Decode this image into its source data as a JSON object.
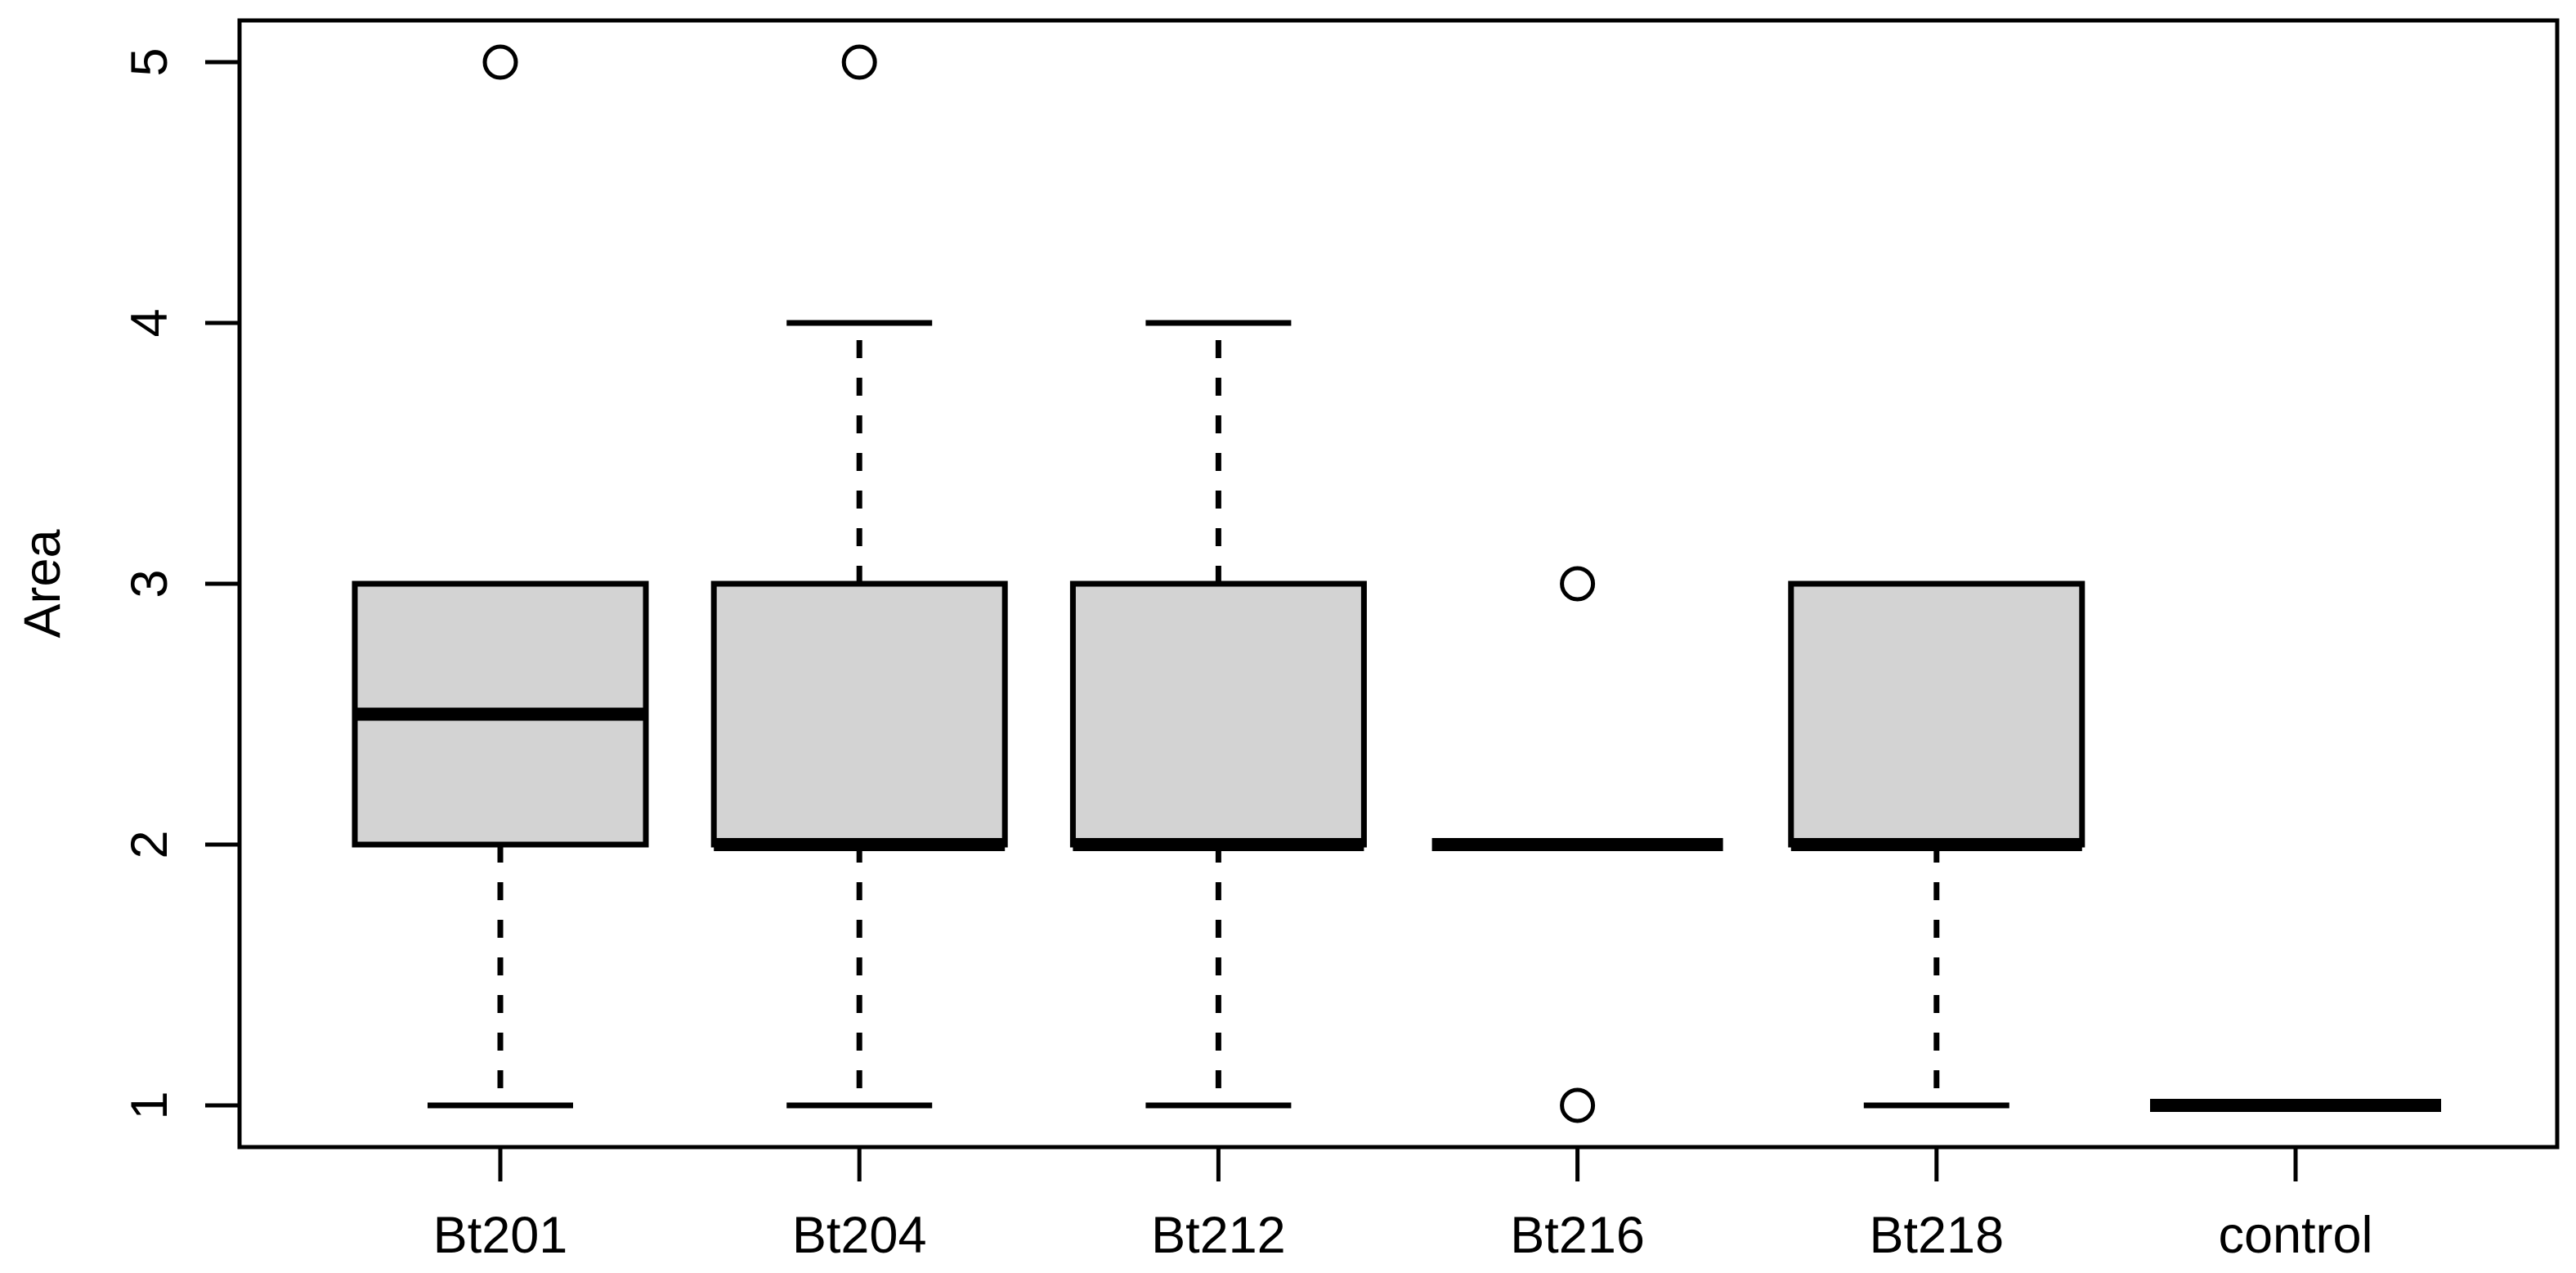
{
  "figure": {
    "background": "#ffffff",
    "box_fill": "#d3d3d3",
    "line_color": "#000000",
    "outlier_fill": "#ffffff"
  },
  "chart_data": {
    "type": "boxplot",
    "title": "",
    "xlabel": "",
    "ylabel": "Area",
    "categories": [
      "Bt201",
      "Bt204",
      "Bt212",
      "Bt216",
      "Bt218",
      "control"
    ],
    "yticks": [
      "1",
      "2",
      "3",
      "4",
      "5"
    ],
    "ylim": [
      0.84,
      5.16
    ],
    "grid": false,
    "legend": null,
    "series": [
      {
        "name": "Bt201",
        "whisker_low": 1,
        "q1": 2,
        "median": 2.5,
        "q3": 3,
        "whisker_high": 3,
        "outliers": [
          5
        ]
      },
      {
        "name": "Bt204",
        "whisker_low": 1,
        "q1": 2,
        "median": 2,
        "q3": 3,
        "whisker_high": 4,
        "outliers": [
          5
        ]
      },
      {
        "name": "Bt212",
        "whisker_low": 1,
        "q1": 2,
        "median": 2,
        "q3": 3,
        "whisker_high": 4,
        "outliers": []
      },
      {
        "name": "Bt216",
        "whisker_low": 2,
        "q1": 2,
        "median": 2,
        "q3": 2,
        "whisker_high": 2,
        "outliers": [
          3,
          1
        ]
      },
      {
        "name": "Bt218",
        "whisker_low": 1,
        "q1": 2,
        "median": 2,
        "q3": 3,
        "whisker_high": 3,
        "outliers": []
      },
      {
        "name": "control",
        "whisker_low": 1,
        "q1": 1,
        "median": 1,
        "q3": 1,
        "whisker_high": 1,
        "outliers": []
      }
    ]
  }
}
